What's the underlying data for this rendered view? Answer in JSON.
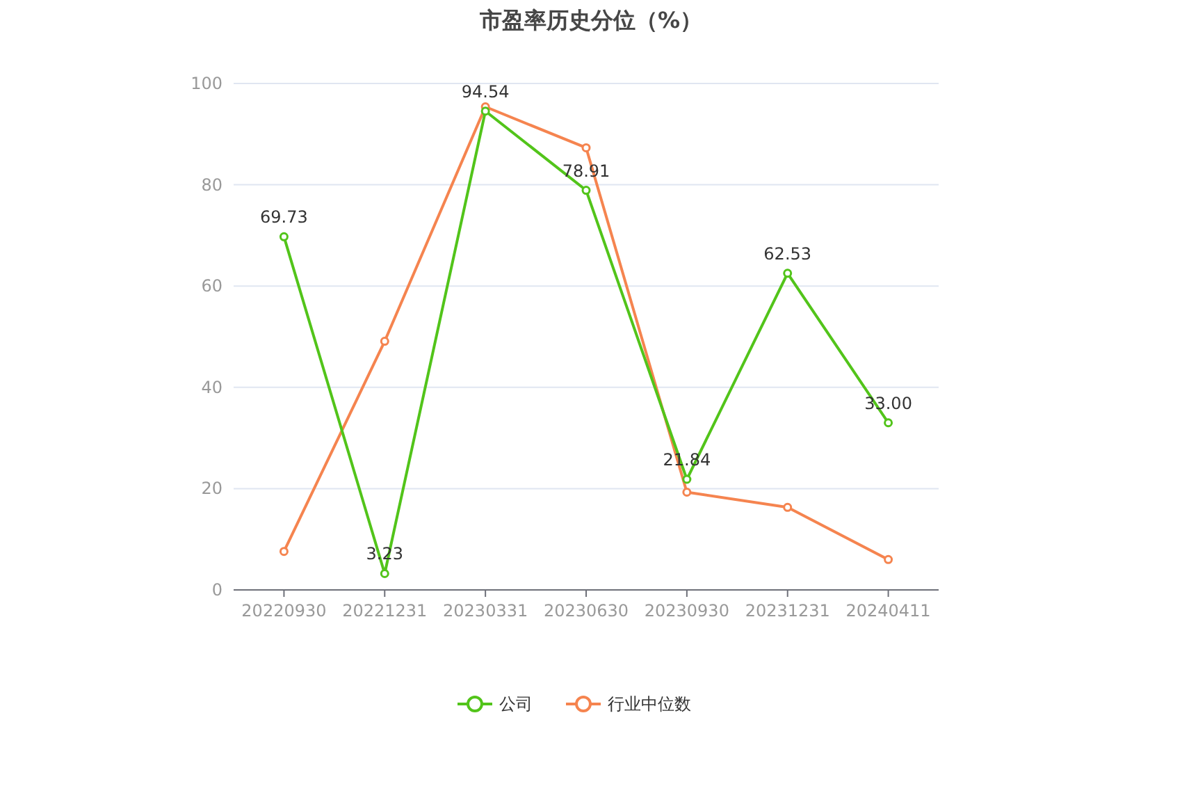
{
  "chart_data": {
    "type": "line",
    "title": "市盈率历史分位（%）",
    "categories": [
      "20220930",
      "20221231",
      "20230331",
      "20230630",
      "20230930",
      "20231231",
      "20240411"
    ],
    "series": [
      {
        "name": "公司",
        "color": "#52c41a",
        "values": [
          69.73,
          3.23,
          94.54,
          78.91,
          21.84,
          62.53,
          33.0
        ],
        "value_labels": [
          "69.73",
          "3.23",
          "94.54",
          "78.91",
          "21.84",
          "62.53",
          "33.00"
        ]
      },
      {
        "name": "行业中位数",
        "color": "#f5844f",
        "values": [
          7.6,
          49.1,
          95.4,
          87.3,
          19.3,
          16.3,
          6.0
        ]
      }
    ],
    "ylim": [
      0,
      100
    ],
    "yticks": [
      0,
      20,
      40,
      60,
      80,
      100
    ],
    "grid": "y",
    "legend": "bottom",
    "marker": "circle",
    "line_style": "solid"
  }
}
